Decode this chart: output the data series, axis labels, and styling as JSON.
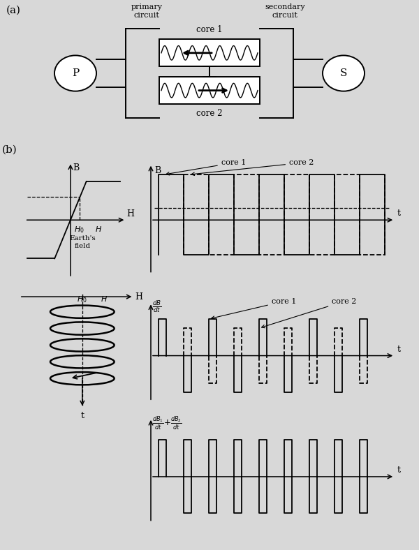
{
  "bg_color": "#d8d8d8",
  "fig_width": 6.0,
  "fig_height": 7.88,
  "label_a": "(a)",
  "label_b": "(b)",
  "primary_circuit": "primary\ncircuit",
  "secondary_circuit": "secondary\ncircuit",
  "core1_label": "core 1",
  "core2_label": "core 2",
  "P_label": "P",
  "S_label": "S"
}
